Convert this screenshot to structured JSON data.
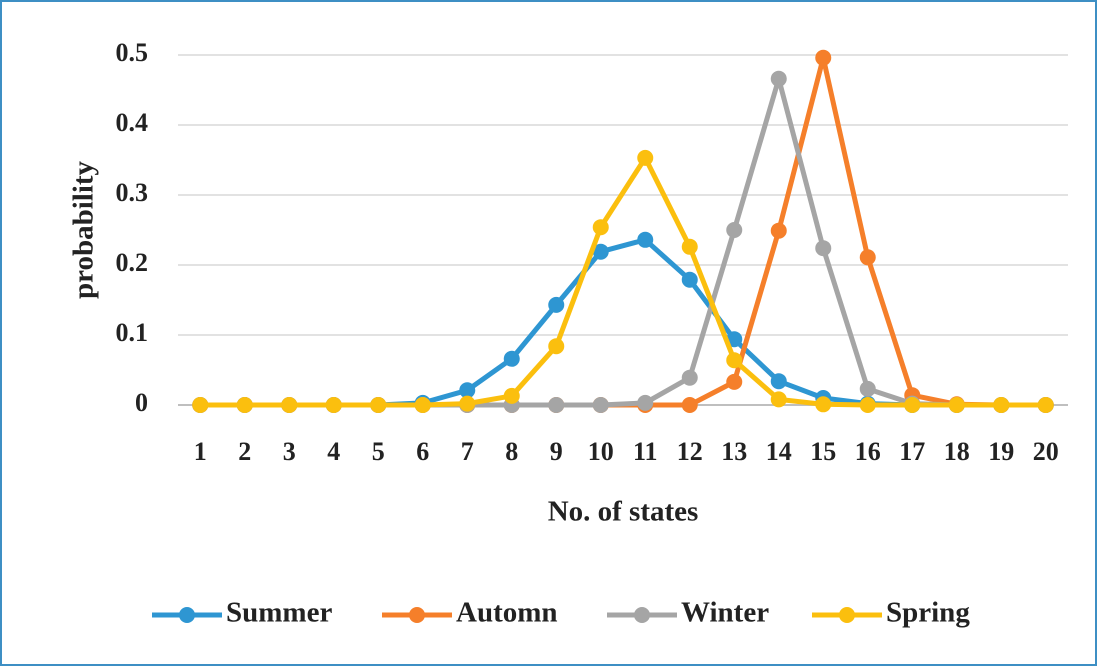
{
  "chart_data": {
    "type": "line",
    "x_label": "No. of states",
    "y_label": "probability",
    "categories": [
      "1",
      "2",
      "3",
      "4",
      "5",
      "6",
      "7",
      "8",
      "9",
      "10",
      "11",
      "12",
      "13",
      "14",
      "15",
      "16",
      "17",
      "18",
      "19",
      "20"
    ],
    "series": [
      {
        "name": "Summer",
        "color": "#2e96d2",
        "values": [
          0,
          0,
          0,
          0,
          0,
          0.003,
          0.021,
          0.066,
          0.143,
          0.219,
          0.236,
          0.179,
          0.094,
          0.034,
          0.01,
          0.002,
          0,
          0,
          0,
          0
        ]
      },
      {
        "name": "Automn",
        "color": "#f57f2a",
        "values": [
          0,
          0,
          0,
          0,
          0,
          0,
          0,
          0,
          0,
          0,
          0,
          0,
          0.033,
          0.249,
          0.496,
          0.211,
          0.014,
          0.001,
          0,
          0
        ]
      },
      {
        "name": "Winter",
        "color": "#a5a5a5",
        "values": [
          0,
          0,
          0,
          0,
          0,
          0,
          0,
          0,
          0,
          0,
          0.003,
          0.039,
          0.25,
          0.466,
          0.224,
          0.023,
          0.002,
          0,
          0,
          0
        ]
      },
      {
        "name": "Spring",
        "color": "#fbbf0e",
        "values": [
          0,
          0,
          0,
          0,
          0,
          0,
          0.002,
          0.013,
          0.084,
          0.254,
          0.353,
          0.226,
          0.064,
          0.008,
          0.001,
          0,
          0,
          0,
          0,
          0
        ]
      }
    ],
    "ylim": [
      0,
      0.5
    ],
    "yticks": [
      0,
      0.1,
      0.2,
      0.3,
      0.4,
      0.5
    ],
    "grid": true,
    "legend": "bottom"
  }
}
